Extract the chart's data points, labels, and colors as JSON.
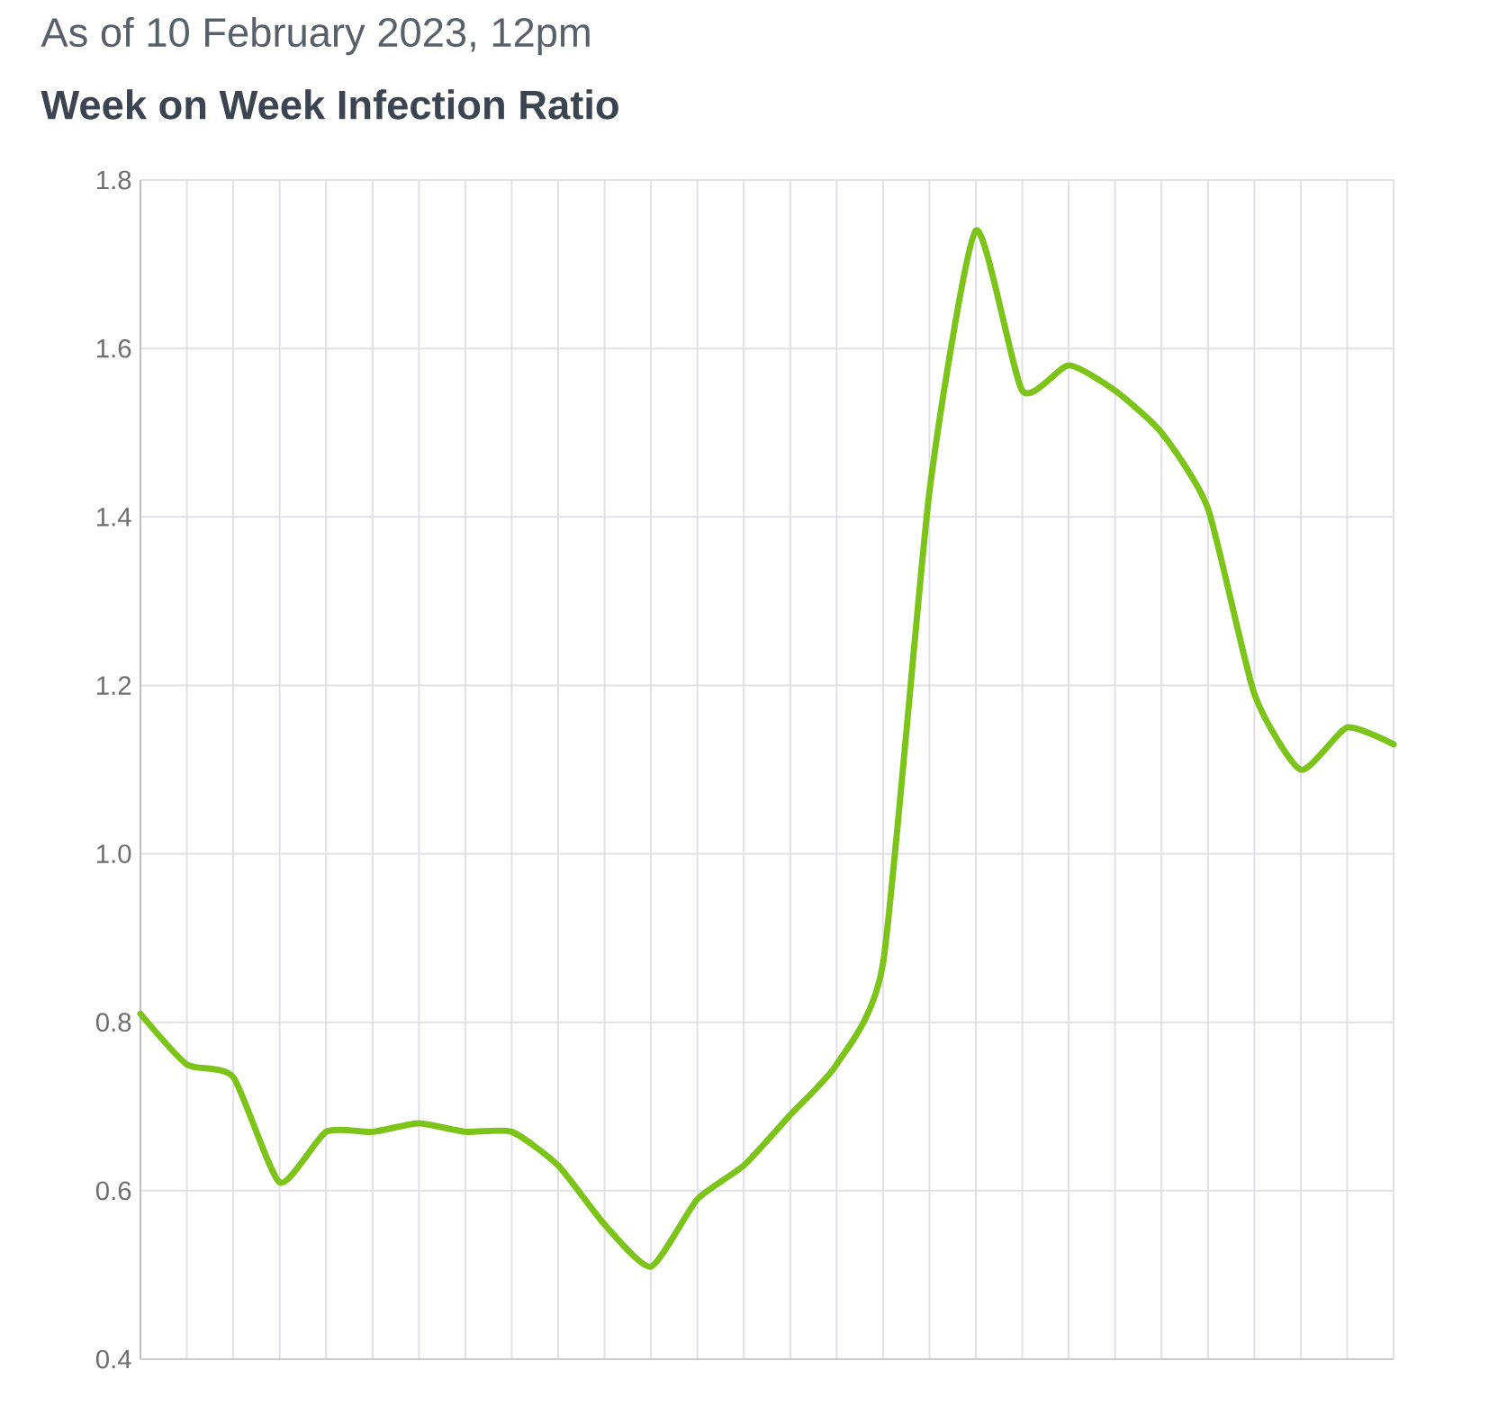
{
  "chart_data": {
    "type": "line",
    "subtitle": "As of 10 February 2023, 12pm",
    "title": "Week on Week Infection Ratio",
    "categories": [
      null,
      null,
      null,
      null,
      null,
      null,
      null,
      null,
      null,
      null,
      null,
      null,
      null,
      null,
      null,
      null,
      null,
      null,
      null,
      null,
      null,
      null,
      null,
      null,
      null,
      null,
      null,
      null
    ],
    "values": [
      0.81,
      0.75,
      0.735,
      0.61,
      0.67,
      0.67,
      0.68,
      0.67,
      0.67,
      0.63,
      0.56,
      0.51,
      0.59,
      0.63,
      0.69,
      0.75,
      0.87,
      1.43,
      1.74,
      1.55,
      1.58,
      1.55,
      1.5,
      1.41,
      1.19,
      1.1,
      1.15,
      1.13
    ],
    "color": "#7dc41a",
    "ylim": [
      0.4,
      1.8
    ],
    "yticks": [
      0.4,
      0.6,
      0.8,
      {
        "value": 1.0,
        "label": "1.0"
      },
      1.2,
      1.4,
      1.6,
      1.8
    ],
    "grid": true,
    "tick_labels": "y"
  }
}
